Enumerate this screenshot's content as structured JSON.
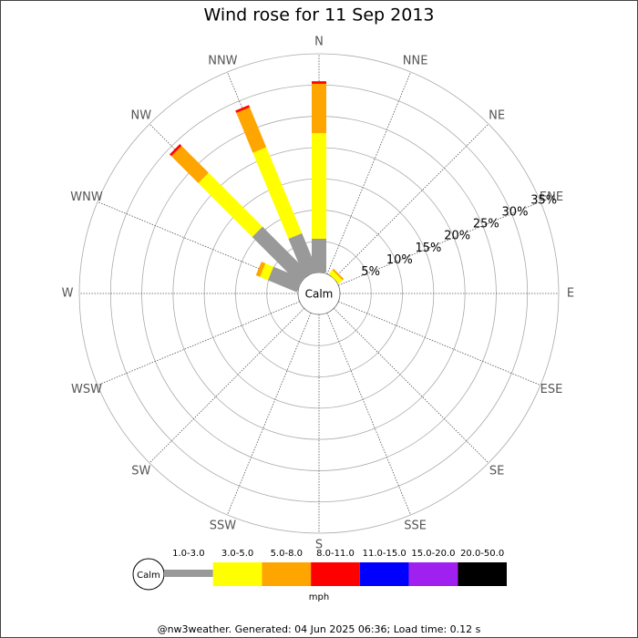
{
  "chart_data": {
    "type": "windrose",
    "title": "Wind rose for 11 Sep 2013",
    "directions": [
      "N",
      "NNE",
      "NE",
      "ENE",
      "E",
      "ESE",
      "SE",
      "SSE",
      "S",
      "SSW",
      "SW",
      "WSW",
      "W",
      "WNW",
      "NW",
      "NNW"
    ],
    "center_label": "Calm",
    "rlim": [
      0,
      35
    ],
    "rticks": [
      {
        "value": 5,
        "label": "5%"
      },
      {
        "value": 10,
        "label": "10%"
      },
      {
        "value": 15,
        "label": "15%"
      },
      {
        "value": 20,
        "label": "20%"
      },
      {
        "value": 25,
        "label": "25%"
      },
      {
        "value": 30,
        "label": "30%"
      },
      {
        "value": 35,
        "label": "35%"
      }
    ],
    "series": [
      {
        "name": "1.0-3.0",
        "color": "#999999",
        "values": [
          5.4,
          0,
          0,
          0,
          0,
          0,
          0,
          0,
          0,
          0,
          0,
          0,
          0,
          5.0,
          10.6,
          6.6
        ]
      },
      {
        "name": "3.0-5.0",
        "color": "#ffff00",
        "values": [
          16.9,
          0,
          0.8,
          0,
          0,
          0,
          0,
          0,
          0,
          0,
          0,
          0,
          0,
          1.4,
          12.2,
          14.9
        ]
      },
      {
        "name": "5.0-8.0",
        "color": "#ffa500",
        "values": [
          7.9,
          0,
          0.3,
          0,
          0,
          0,
          0,
          0,
          0,
          0,
          0,
          0,
          0,
          0.7,
          6.1,
          6.9
        ]
      },
      {
        "name": "8.0-11.0",
        "color": "#ff0000",
        "values": [
          0.4,
          0,
          0,
          0,
          0,
          0,
          0,
          0,
          0,
          0,
          0,
          0,
          0,
          0,
          0.4,
          0.4
        ]
      },
      {
        "name": "11.0-15.0",
        "color": "#0000ff",
        "values": [
          0,
          0,
          0,
          0,
          0,
          0,
          0,
          0,
          0,
          0,
          0,
          0,
          0,
          0,
          0,
          0
        ]
      },
      {
        "name": "15.0-20.0",
        "color": "#a020f0",
        "values": [
          0,
          0,
          0,
          0,
          0,
          0,
          0,
          0,
          0,
          0,
          0,
          0,
          0,
          0,
          0,
          0
        ]
      },
      {
        "name": "20.0-50.0",
        "color": "#000000",
        "values": [
          0,
          0,
          0,
          0,
          0,
          0,
          0,
          0,
          0,
          0,
          0,
          0,
          0,
          0,
          0,
          0
        ]
      }
    ],
    "unit_label": "mph",
    "footer": "@nw3weather. Generated: 04 Jun 2025 06:36; Load time: 0.12 s"
  }
}
